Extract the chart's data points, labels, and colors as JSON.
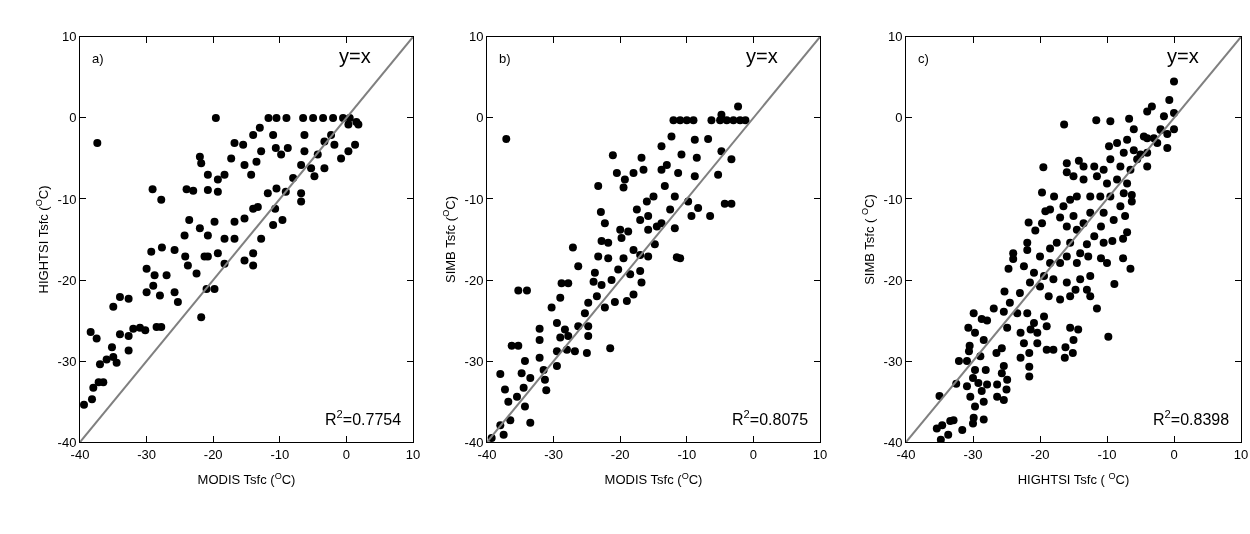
{
  "chart_data": [
    {
      "type": "scatter",
      "xlabel": "MODIS Tsfc ($^{O}$C)",
      "ylabel": "HIGHTSI Tsfc ($^{O}$C)",
      "xlim": [
        -40,
        10
      ],
      "ylim": [
        -40,
        10
      ],
      "xticks": [
        -40,
        -30,
        -20,
        -10,
        0,
        10
      ],
      "yticks": [
        -40,
        -30,
        -20,
        -10,
        0,
        10
      ],
      "annotations": [
        "a)",
        "y=x",
        "R$^{2}$=0.7754"
      ],
      "series": [
        {
          "type": "scatter",
          "marker": "circle",
          "color": "#000000",
          "x": [
            -37.4,
            -19.6,
            -29.1,
            -27.8,
            -39.4,
            -38.2,
            -38,
            -37.2,
            -36.5,
            -38.4,
            -37.5,
            -37,
            -36,
            -35,
            -34.5,
            -35.2,
            -34,
            -32.7,
            -32.7,
            -32,
            -31,
            -30.2,
            -28.5,
            -27.8,
            -35,
            -34,
            -32.7,
            -30,
            -29,
            -28,
            -25.8,
            -25.3,
            -21.8,
            -21,
            -19.8,
            -30,
            -28.8,
            -27,
            -29.3,
            -27.7,
            -25.8,
            -24.2,
            -23.8,
            -22.5,
            -21.3,
            -20.8,
            -19.3,
            -18.3,
            -24.3,
            -23.6,
            -22,
            -20.8,
            -19.8,
            -18.3,
            -16.8,
            -15.3,
            -16.8,
            -14,
            -13.3,
            -14,
            -14,
            -15.3,
            -12.8,
            -11,
            -9.6,
            -6.8,
            -6.8,
            -8,
            -9.1,
            -10.5,
            -11.8,
            -10.7,
            -20.8,
            -19.3,
            -24,
            -23,
            -20.8,
            -19.3,
            -18.3,
            -17.3,
            -16.8,
            -22,
            -21.8,
            -15.5,
            -14,
            -13,
            -12.8,
            -13.5,
            -15.3,
            -14.3,
            -11,
            -10.6,
            -9.8,
            -8.8,
            -6.3,
            -6.3,
            -6.8,
            -5.3,
            -4.3,
            -3.3,
            -1.8,
            -2.3,
            -0.8,
            0.3,
            1.3,
            0.3,
            1.8,
            -3.3,
            -4.8,
            -11.7,
            -10.5,
            -9,
            -6.5,
            -5,
            -3.5,
            -2,
            -0.5,
            0.5,
            1.5
          ],
          "values": [
            -3.1,
            0,
            -8.8,
            -10.1,
            -35.4,
            -34.7,
            -33.3,
            -32.6,
            -32.6,
            -26.4,
            -27.2,
            -30.4,
            -29.8,
            -29.5,
            -30.2,
            -28.3,
            -26.7,
            -28.7,
            -26.9,
            -26,
            -25.9,
            -26.2,
            -25.8,
            -25.8,
            -23.3,
            -22.1,
            -22.3,
            -21.5,
            -20.7,
            -21.9,
            -21.5,
            -22.7,
            -24.6,
            -21.1,
            -21.1,
            -18.6,
            -19.4,
            -19.4,
            -16.5,
            -16,
            -16.3,
            -17.1,
            -18.2,
            -19.2,
            -17.1,
            -17.1,
            -16.7,
            -18,
            -14.5,
            -12.6,
            -13.6,
            -14.5,
            -12.8,
            -14.9,
            -12.8,
            -12.4,
            -14.9,
            -11.2,
            -11,
            -16.7,
            -18.2,
            -17.6,
            -14.9,
            -13.2,
            -12.6,
            -10.3,
            -9.3,
            -7.4,
            -9.1,
            -8.7,
            -9.3,
            -11.2,
            -8.9,
            -9.1,
            -8.8,
            -9,
            -7,
            -7.6,
            -7,
            -5,
            -3.1,
            -4.8,
            -5.6,
            -3.3,
            -2.1,
            -1.2,
            -4.1,
            -5.4,
            -5.8,
            -7,
            -2.1,
            -3.7,
            -4.5,
            -3.7,
            -2.1,
            -4.1,
            -5.8,
            -6.2,
            -4.5,
            -2.9,
            -3.3,
            -2.1,
            -5,
            -4.1,
            -3.3,
            -0.8,
            -0.8,
            -6.2,
            -7.2,
            0,
            0,
            0,
            0,
            0,
            0,
            0,
            0,
            0,
            -0.5
          ]
        },
        {
          "type": "line",
          "color": "#808080",
          "x": [
            -40,
            10
          ],
          "values": [
            -40,
            10
          ]
        }
      ]
    },
    {
      "type": "scatter",
      "xlabel": "MODIS Tsfc ($^{O}$C)",
      "ylabel": "SIMB Tsfc ($^{O}$C)",
      "xlim": [
        -40,
        10
      ],
      "ylim": [
        -40,
        10
      ],
      "xticks": [
        -40,
        -30,
        -20,
        -10,
        0,
        10
      ],
      "yticks": [
        -40,
        -30,
        -20,
        -10,
        0,
        10
      ],
      "annotations": [
        "b)",
        "y=x",
        "R$^{2}$=0.8075"
      ],
      "series": [
        {
          "type": "scatter",
          "marker": "circle",
          "color": "#000000",
          "x": [
            -37.1,
            -12,
            -11,
            -10,
            -9,
            -6.3,
            -5,
            -4,
            -3,
            -2,
            -1.2,
            -2.3,
            -4.8,
            -12.3,
            -13.8,
            -8.8,
            -6.8,
            -4.8,
            -3.3,
            -5.3,
            -4.3,
            -3.3,
            -6.5,
            -9.3,
            -8.3,
            -9.8,
            -11.8,
            -13.3,
            -13.8,
            -13,
            -11.3,
            -10.8,
            -8.5,
            -8.8,
            -16.8,
            -16.5,
            -18,
            -19.3,
            -20.5,
            -21.1,
            -19.5,
            -23.3,
            -22.9,
            -22.3,
            -17.5,
            -16,
            -15,
            -15.8,
            -17,
            -15.8,
            -14.5,
            -13.8,
            -12.5,
            -11.8,
            -20,
            -18.8,
            -19.8,
            -22.8,
            -21.8,
            -23.3,
            -21.8,
            -19.5,
            -18,
            -17,
            -15.8,
            -14.8,
            -11.5,
            -11,
            -27.1,
            -26.3,
            -23.8,
            -24,
            -22.8,
            -21.3,
            -20.3,
            -18.5,
            -17,
            -16.8,
            -18,
            -19,
            -20.8,
            -22.3,
            -23.5,
            -24.8,
            -25.3,
            -29,
            -28.8,
            -27.8,
            -30.3,
            -35.3,
            -34,
            -29.5,
            -28.3,
            -27.8,
            -29,
            -26.3,
            -24.8,
            -24.8,
            -25,
            -26.8,
            -28,
            -29.5,
            -29.5,
            -32.1,
            -32.1,
            -32.1,
            -31.5,
            -31.3,
            -31.1,
            -21.5,
            -36.3,
            -35.3,
            -34.3,
            -34.8,
            -33.5,
            -34.5,
            -35.5,
            -36.8,
            -38,
            -37.3,
            -34.3,
            -33.5,
            -36.5,
            -38,
            -37.5,
            -39.3
          ],
          "values": [
            -2.6,
            -0.3,
            -0.3,
            -0.3,
            -0.3,
            -0.3,
            -0.3,
            -0.3,
            -0.3,
            -0.3,
            -0.3,
            1.4,
            0.4,
            -2.3,
            -3.5,
            -2.7,
            -2.6,
            -4.1,
            -5.1,
            -7,
            -10.6,
            -10.6,
            -12.1,
            -12.1,
            -11.1,
            -10.3,
            -9.7,
            -8.4,
            -6.4,
            -5.8,
            -6.8,
            -4.5,
            -4.9,
            -7.2,
            -4.9,
            -6.4,
            -6.8,
            -7.6,
            -6.8,
            -4.6,
            -8.6,
            -8.4,
            -11.6,
            -13,
            -11.3,
            -10.3,
            -9.7,
            -12.1,
            -12.6,
            -13.8,
            -13.4,
            -13,
            -11.3,
            -13.6,
            -13.8,
            -14,
            -14.8,
            -15.2,
            -15.4,
            -17.1,
            -17.3,
            -17.3,
            -16.3,
            -16.9,
            -17.1,
            -15.6,
            -17.2,
            -17.3,
            -16,
            -18.3,
            -19.1,
            -20.2,
            -20.6,
            -20,
            -18.7,
            -19.3,
            -18.9,
            -20.3,
            -21.8,
            -22.6,
            -22.7,
            -23.4,
            -22,
            -22.8,
            -24.1,
            -22.2,
            -20.4,
            -20.4,
            -23.4,
            -21.3,
            -21.3,
            -25.3,
            -26.1,
            -26.9,
            -27.1,
            -25.7,
            -25.7,
            -26.9,
            -29,
            -28.8,
            -28.6,
            -28.8,
            -30.6,
            -26,
            -27.4,
            -29.6,
            -31.1,
            -32.3,
            -33.6,
            -28.4,
            -28.1,
            -28.1,
            -30,
            -31.5,
            -32.1,
            -33.3,
            -34.4,
            -35,
            -31.6,
            -33.5,
            -35.6,
            -37.6,
            -37.3,
            -37.9,
            -39.1,
            -39.5
          ]
        },
        {
          "type": "line",
          "color": "#808080",
          "x": [
            -40,
            10
          ],
          "values": [
            -40,
            10
          ]
        }
      ]
    },
    {
      "type": "scatter",
      "xlabel": "HIGHTSI Tsfc ( $^{O}$C)",
      "ylabel": "SIMB Tsfc ( $^{O}$C)",
      "xlim": [
        -40,
        10
      ],
      "ylim": [
        -40,
        10
      ],
      "xticks": [
        -40,
        -30,
        -20,
        -10,
        0,
        10
      ],
      "yticks": [
        -40,
        -30,
        -20,
        -10,
        0,
        10
      ],
      "annotations": [
        "c)",
        "y=x",
        "R$^{2}$=0.8398"
      ],
      "series": [
        {
          "type": "scatter",
          "marker": "circle",
          "color": "#000000",
          "x": [
            0,
            -0.7,
            -4,
            -3.3,
            -6.7,
            -9.5,
            -11.6,
            -16.4,
            0,
            -1.5,
            0,
            -2,
            -1,
            -2.5,
            -4.5,
            -6,
            -7,
            -8.5,
            -9.7,
            -7.5,
            -4,
            -5.5,
            -4,
            -6.5,
            -8,
            -9.5,
            -10.5,
            -11.9,
            -13.5,
            -14.2,
            -16,
            -16,
            -19.5,
            -15,
            -13.5,
            -11.5,
            -10,
            -8.5,
            -7,
            -7.5,
            -6.3,
            -6.3,
            -8,
            -9.5,
            -11,
            -12.5,
            -14.5,
            -15.5,
            -17.9,
            -19.7,
            -16.5,
            -18.5,
            -19.2,
            -17,
            -19.7,
            -21.7,
            -20.7,
            -15,
            -13.5,
            -14.5,
            -16,
            -12.5,
            -10.5,
            -9,
            -7.3,
            -7,
            -7.6,
            -9.2,
            -10.9,
            -11.9,
            -10.5,
            -10,
            -10.9,
            -7.6,
            -6.5,
            -8.9,
            -13,
            -14,
            -12.8,
            -15.5,
            -17.5,
            -18.5,
            -16,
            -14.5,
            -17,
            -18.5,
            -20,
            -21.9,
            -21.9,
            -24,
            -24,
            -24.7,
            -22.4,
            -20.9,
            -19.4,
            -18,
            -16,
            -14,
            -12.5,
            -13,
            -14.7,
            -15.5,
            -17,
            -18.7,
            -20,
            -21.5,
            -23,
            -24.5,
            -25.3,
            -23.4,
            -21.9,
            -20.9,
            -19.4,
            -19,
            -20.4,
            -21.4,
            -22.9,
            -22.4,
            -20.4,
            -19,
            -18,
            -21.6,
            -22.9,
            -21.6,
            -21.6,
            -15.5,
            -14.3,
            -15,
            -16.2,
            -15.1,
            -16.3,
            -9.8,
            -11.5,
            -12.5,
            -24.9,
            -25.4,
            -26.9,
            -27.9,
            -28.7,
            -29.9,
            -30.7,
            -29.7,
            -28.4,
            -30.5,
            -30.6,
            -28.9,
            -26.5,
            -25.7,
            -25.4,
            -25.7,
            -24.9,
            -25,
            -26.4,
            -26.4,
            -25.4,
            -27.9,
            -28.1,
            -29.7,
            -30,
            -29.2,
            -30.9,
            -30.4,
            -29.7,
            -28.4,
            -28.7,
            -32.1,
            -30.9,
            -32.5,
            -29.9,
            -28.4,
            -30,
            -31.6,
            -32.9,
            -33.4,
            -34.6,
            -35.4,
            -33.7,
            -35,
            -34.8,
            -5,
            -3,
            -2,
            -1,
            -6,
            -4
          ],
          "values": [
            4.5,
            2.2,
            0.8,
            1.4,
            -0.1,
            -0.4,
            -0.3,
            -0.8,
            0.6,
            0.2,
            -1.4,
            -1.4,
            -3.7,
            -3.1,
            -2.3,
            -1.4,
            -2.7,
            -3.1,
            -3.5,
            -4.3,
            -4.3,
            -5.1,
            -6,
            -6.4,
            -6,
            -5.1,
            -6.4,
            -6,
            -6,
            -5.3,
            -5.6,
            -6.7,
            -6.1,
            -7.2,
            -7.6,
            -7.2,
            -8.1,
            -7.6,
            -8.1,
            -9.3,
            -9.5,
            -10.3,
            -10.9,
            -9.7,
            -9.7,
            -9.7,
            -9.7,
            -10.1,
            -9.7,
            -9.2,
            -10.9,
            -11.3,
            -11.5,
            -12.3,
            -13,
            -12.9,
            -13.9,
            -12.1,
            -13,
            -13.8,
            -13.4,
            -11.7,
            -11.7,
            -12.6,
            -12.1,
            -14.1,
            -14.9,
            -15.2,
            -13.4,
            -14.6,
            -15.4,
            -17.9,
            -17.3,
            -17.3,
            -18.6,
            -20.5,
            -15.6,
            -16.7,
            -17.1,
            -15.4,
            -15.4,
            -16.1,
            -17.1,
            -17.9,
            -17.9,
            -17.9,
            -17.1,
            -15.4,
            -16.3,
            -16.7,
            -17.4,
            -18.6,
            -18.3,
            -19.1,
            -19.5,
            -19.9,
            -20.3,
            -19.9,
            -19.5,
            -21.2,
            -21.2,
            -22,
            -22.4,
            -22,
            -20.8,
            -20.3,
            -21.6,
            -22.8,
            -21.4,
            -24.1,
            -24.1,
            -25.3,
            -24.5,
            -25.7,
            -26.5,
            -26.1,
            -26.5,
            -27.8,
            -27.8,
            -28.6,
            -28.6,
            -29,
            -29.6,
            -30.7,
            -31.9,
            -25.9,
            -26.1,
            -27.4,
            -28.3,
            -29,
            -29.6,
            -27,
            -23.5,
            -22,
            -25.9,
            -23.9,
            -23.5,
            -25,
            -24.8,
            -24.1,
            -25.9,
            -26.5,
            -27.4,
            -28.1,
            -28.8,
            -29.4,
            -29,
            -28.4,
            -30.6,
            -31.5,
            -32.3,
            -33.5,
            -32.9,
            -34.4,
            -34.8,
            -32.9,
            -31.1,
            -31.1,
            -32.1,
            -32.7,
            -33.1,
            -34.4,
            -35.6,
            -35,
            -33.7,
            -30,
            -30,
            -32.8,
            -37,
            -37.2,
            -37.7,
            -38.5,
            -37.3,
            -37.4,
            -37.9,
            -38.3,
            -39.1,
            -34.3,
            -39.7,
            -4.5,
            -2.5,
            -1.5,
            -2,
            -4,
            -2.5
          ]
        },
        {
          "type": "line",
          "color": "#808080",
          "x": [
            -40,
            10
          ],
          "values": [
            -40,
            10
          ]
        }
      ]
    }
  ]
}
